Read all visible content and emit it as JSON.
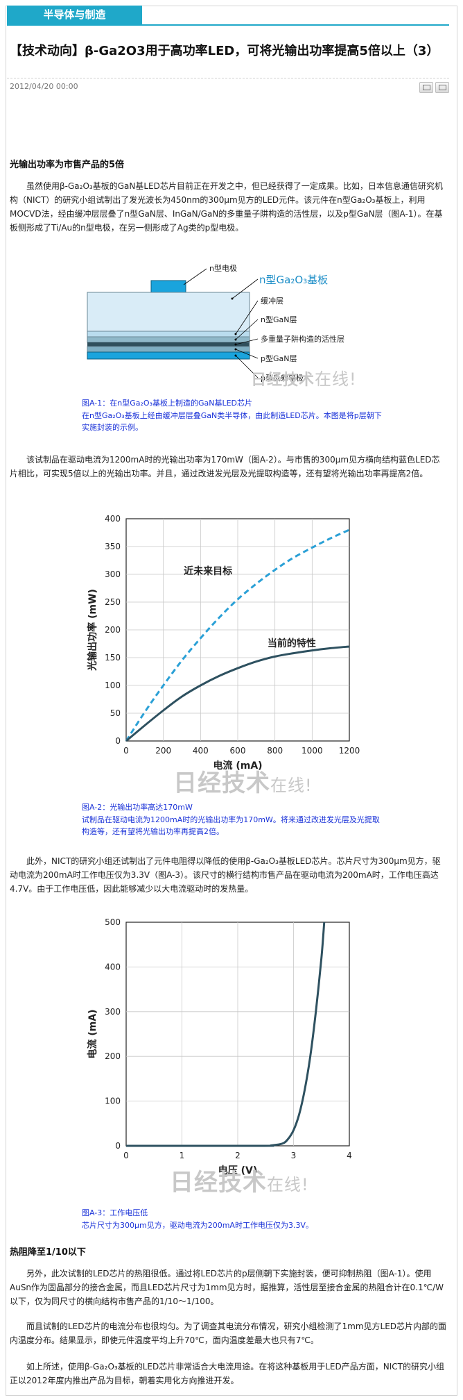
{
  "category": "半导体与制造",
  "article": {
    "title": "【技术动向】β-Ga2O3用于高功率LED，可将光输出功率提高5倍以上（3）",
    "date": "2012/04/20 00:00",
    "icons": [
      "print-icon",
      "email-icon"
    ]
  },
  "sections": {
    "s1_heading": "光输出功率为市售产品的5倍",
    "s2_heading": "热阻降至1/10以下"
  },
  "paragraphs": {
    "p1": "虽然使用β-Ga₂O₃基板的GaN基LED芯片目前正在开发之中，但已经获得了一定成果。比如，日本信息通信研究机构（NICT）的研究小组试制出了发光波长为450nm的300μm见方的LED元件。该元件在n型Ga₂O₃基板上，利用MOCVD法，经由缓冲层层叠了n型GaN层、InGaN/GaN的多重量子阱构造的活性层，以及p型GaN层（图A-1）。在基板侧形成了Ti/Au的n型电极，在另一侧形成了Ag类的p型电极。",
    "p2": "该试制品在驱动电流为1200mA时的光输出功率为170mW（图A-2）。与市售的300μm见方横向结构蓝色LED芯片相比，可实现5倍以上的光输出功率。并且，通过改进发光层及光提取构造等，还有望将光输出功率再提高2倍。",
    "p3": "此外，NICT的研究小组还试制出了元件电阻得以降低的使用β-Ga₂O₃基板LED芯片。芯片尺寸为300μm见方，驱动电流为200mA时工作电压仅为3.3V（图A-3）。该尺寸的横行结构市售产品在驱动电流为200mA时，工作电压高达4.7V。由于工作电压低，因此能够减少以大电流驱动时的发热量。",
    "p4": "另外，此次试制的LED芯片的热阻很低。通过将LED芯片的p层侧朝下实施封装，便可抑制热阻（图A-1）。使用AuSn作为固晶部分的接合金属，而且LED芯片尺寸为1mm见方时，据推算，活性层至接合金属的热阻合计在0.1℃/W以下，仅为同尺寸的横向结构市售产品的1/10～1/100。",
    "p5": "而且试制的LED芯片的电流分布也很均匀。为了调查其电流分布情况，研究小组检测了1mm见方LED芯片内部的面内温度分布。结果显示，即使元件温度平均上升70℃，面内温度差最大也只有7℃。",
    "p6": "如上所述，使用β-Ga₂O₃基板的LED芯片非常适合大电流用途。在将这种基板用于LED产品方面，NICT的研究小组正以2012年度内推出产品为目标，朝着实用化方向推进开发。"
  },
  "figure1": {
    "labels": {
      "n_electrode": "n型电极",
      "substrate": "n型Ga₂O₃基板",
      "buffer": "缓冲层",
      "n_gan": "n型GaN层",
      "mqw": "多重量子阱构造的活性层",
      "p_gan": "p型GaN层",
      "p_reflect": "p型反射电极"
    },
    "caption_title": "图A-1：在n型Ga₂O₃基板上制造的GaN基LED芯片",
    "caption_text": "在n型Ga₂O₃基板上经由缓冲层层叠GaN类半导体，由此制造LED芯片。本图是将p层朝下实施封装的示例。"
  },
  "chart_data": [
    {
      "type": "line",
      "title": "",
      "xlabel": "电流 (mA)",
      "ylabel": "光输出功率 (mW)",
      "xlim": [
        0,
        1200
      ],
      "ylim": [
        0,
        400
      ],
      "xticks": [
        0,
        200,
        400,
        600,
        800,
        1000,
        1200
      ],
      "yticks": [
        0,
        50,
        100,
        150,
        200,
        250,
        300,
        350,
        400
      ],
      "grid": true,
      "series": [
        {
          "name": "近未来目标",
          "style": "dashed",
          "color": "#2aa0d6",
          "x": [
            0,
            100,
            200,
            300,
            400,
            500,
            600,
            700,
            800,
            900,
            1000,
            1100,
            1200
          ],
          "y": [
            0,
            52,
            100,
            145,
            185,
            222,
            255,
            283,
            308,
            330,
            348,
            365,
            380
          ]
        },
        {
          "name": "当前的特性",
          "style": "solid",
          "color": "#2e5160",
          "x": [
            0,
            100,
            200,
            300,
            400,
            500,
            600,
            700,
            800,
            900,
            1000,
            1100,
            1200
          ],
          "y": [
            0,
            28,
            55,
            80,
            100,
            117,
            131,
            143,
            152,
            158,
            163,
            167,
            170
          ]
        }
      ]
    },
    {
      "type": "line",
      "title": "",
      "xlabel": "电压 (V)",
      "ylabel": "电流 (mA)",
      "xlim": [
        0,
        4
      ],
      "ylim": [
        0,
        500
      ],
      "xticks": [
        0,
        1,
        2,
        3,
        4
      ],
      "yticks": [
        0,
        100,
        200,
        300,
        400,
        500
      ],
      "grid": true,
      "series": [
        {
          "name": "",
          "style": "solid",
          "color": "#2e5160",
          "x": [
            0,
            2.4,
            2.6,
            2.8,
            2.9,
            3.0,
            3.1,
            3.2,
            3.3,
            3.4,
            3.5,
            3.55
          ],
          "y": [
            0,
            0,
            1,
            5,
            15,
            35,
            70,
            125,
            200,
            300,
            420,
            500
          ]
        }
      ]
    }
  ],
  "figure2": {
    "caption_title": "图A-2：光输出功率高达170mW",
    "caption_text": "试制品在驱动电流为1200mA时的光输出功率为170mW。将来通过改进发光层及光提取构造等，还有望将光输出功率再提高2倍。"
  },
  "figure3": {
    "caption_title": "图A-3：工作电压低",
    "caption_text": "芯片尺寸为300μm见方，驱动电流为200mA时工作电压仅为3.3V。"
  },
  "watermark": {
    "main": "日经技术",
    "suffix": "在线!"
  },
  "colors": {
    "accent": "#1fa8c9",
    "caption": "#1a32d8",
    "dashed_series": "#2aa0d6",
    "solid_series": "#2e5160"
  }
}
